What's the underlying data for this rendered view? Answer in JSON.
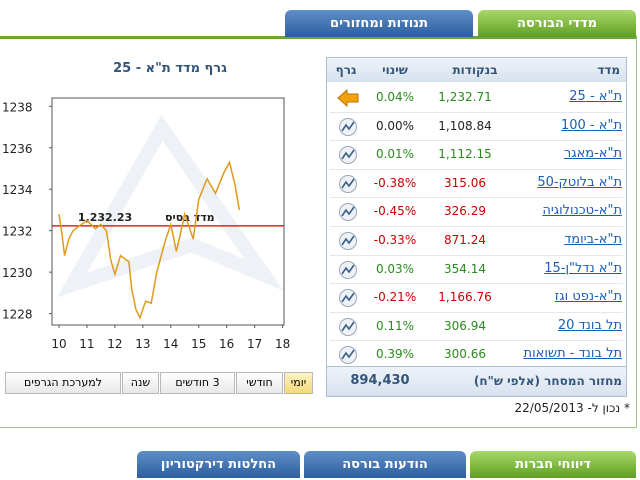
{
  "tabs_top": [
    "מדדי הבורסה",
    "תנודות ומחזורים"
  ],
  "chart_data": {
    "type": "line",
    "title": "גרף מדד ת\"א - 25",
    "x": [
      10,
      10.1,
      10.2,
      10.35,
      10.5,
      10.7,
      11,
      11.3,
      11.5,
      11.7,
      11.85,
      12,
      12.2,
      12.5,
      12.6,
      12.75,
      12.9,
      13.1,
      13.3,
      13.5,
      13.8,
      14,
      14.2,
      14.5,
      14.8,
      15,
      15.3,
      15.6,
      15.9,
      16.1,
      16.3,
      16.45
    ],
    "values": [
      1232.8,
      1231.9,
      1230.8,
      1231.6,
      1232,
      1232.2,
      1232.5,
      1232.1,
      1232.3,
      1232,
      1230.6,
      1229.9,
      1230.8,
      1230.5,
      1229.2,
      1228.2,
      1227.8,
      1228.6,
      1228.5,
      1230,
      1231.5,
      1232.3,
      1231,
      1232.8,
      1231.6,
      1233.5,
      1234.5,
      1233.8,
      1234.8,
      1235.3,
      1234.2,
      1233
    ],
    "color": "#e09a1c",
    "xlim": [
      9.75,
      18.05
    ],
    "ylim": [
      1227.45,
      1238.4
    ],
    "xticks": [
      10,
      11,
      12,
      13,
      14,
      15,
      16,
      17,
      18
    ],
    "yticks": [
      1228,
      1230,
      1232,
      1234,
      1236,
      1238
    ],
    "base_line": {
      "label": "מדד בסיס",
      "value": 1232.23,
      "value_label": "1,232.23",
      "color": "#cc0000"
    }
  },
  "table": {
    "headers": [
      "מדד",
      "בנקודות",
      "שינוי",
      "גרף"
    ],
    "rows": [
      {
        "name": "ת\"א - 25",
        "points": "1,232.71",
        "change": "0.04%",
        "icon": "arrow"
      },
      {
        "name": "ת\"א - 100",
        "points": "1,108.84",
        "change": "0.00%",
        "icon": "chart"
      },
      {
        "name": "ת\"א-מאגר",
        "points": "1,112.15",
        "change": "0.01%",
        "icon": "chart"
      },
      {
        "name": "ת\"א בלוטק-50",
        "points": "315.06",
        "change": "-0.38%",
        "icon": "chart"
      },
      {
        "name": "ת\"א-טכנולוגיה",
        "points": "326.29",
        "change": "-0.45%",
        "icon": "chart"
      },
      {
        "name": "ת\"א-ביומד",
        "points": "871.24",
        "change": "-0.33%",
        "icon": "chart"
      },
      {
        "name": "ת\"א נדל\"ן-15",
        "points": "354.14",
        "change": "0.03%",
        "icon": "chart"
      },
      {
        "name": "ת\"א-נפט וגז",
        "points": "1,166.76",
        "change": "-0.21%",
        "icon": "chart"
      },
      {
        "name": "תל בונד 20",
        "points": "306.94",
        "change": "0.11%",
        "icon": "chart"
      },
      {
        "name": "תל בונד - תשואות",
        "points": "300.66",
        "change": "0.39%",
        "icon": "chart"
      }
    ],
    "footer": {
      "label": "מחזור המסחר (אלפי ש\"ח)",
      "value": "894,430"
    }
  },
  "buttons": [
    "יומי",
    "חודשי",
    "3 חודשים",
    "שנה",
    "למערכת הגרפים"
  ],
  "active_button": 0,
  "note": "* נכון ל- 22/05/2013",
  "tabs_bottom": [
    "דיווחי חברות",
    "הודעות בורסה",
    "החלטות דירקטוריון"
  ]
}
